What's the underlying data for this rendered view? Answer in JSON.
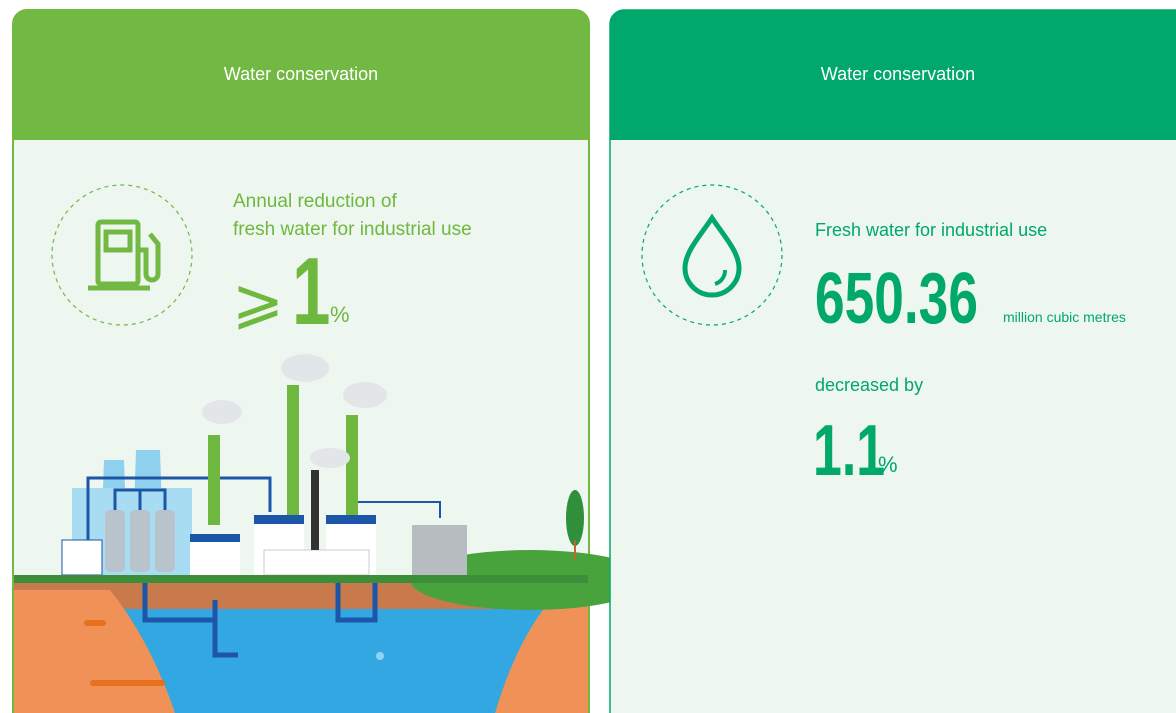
{
  "cards": [
    {
      "header": "Water conservation",
      "label_lines": [
        "Annual reduction of",
        "fresh water for industrial use"
      ],
      "symbol": "⩾",
      "value": "1",
      "unit": "%"
    },
    {
      "header": "Water conservation",
      "label": "Fresh water for industrial use",
      "value": "650.36",
      "unit": "million cubic metres",
      "change_label": "decreased by",
      "change_value": "1.1",
      "change_unit": "%"
    }
  ]
}
